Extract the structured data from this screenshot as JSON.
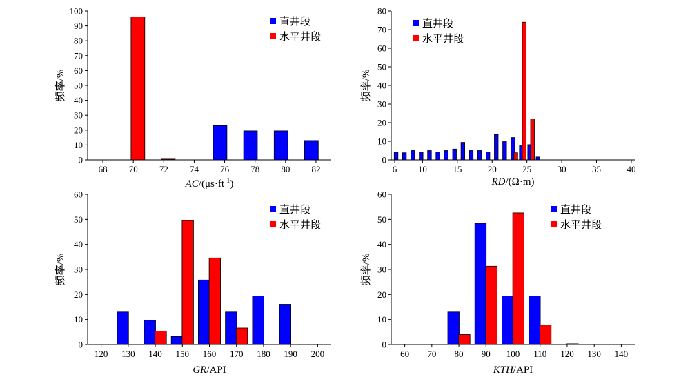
{
  "chart_data": [
    {
      "id": "ac",
      "type": "bar",
      "xlabel_italic": "AC",
      "xlabel_rest": "/(μs·ft",
      "xlabel_sup": "-1",
      "xlabel_close": ")",
      "ylabel": "频率/%",
      "xlim": [
        67,
        83
      ],
      "ylim": [
        0,
        100
      ],
      "xticks": [
        68,
        70,
        72,
        74,
        76,
        78,
        80,
        82
      ],
      "yticks": [
        0,
        10,
        20,
        30,
        40,
        50,
        60,
        70,
        80,
        90,
        100
      ],
      "bar_width": 0.9,
      "legend_position": "top-right",
      "series": [
        {
          "name": "直井段",
          "color": "#0000ff",
          "x": [
            75.7,
            77.7,
            79.7,
            81.7
          ],
          "values": [
            23,
            19.5,
            19.5,
            13
          ]
        },
        {
          "name": "水平井段",
          "color": "#ff0000",
          "x": [
            70.3,
            72.3
          ],
          "values": [
            96,
            0.5
          ]
        }
      ]
    },
    {
      "id": "rd",
      "type": "bar",
      "xlabel_italic": "RD",
      "xlabel_rest": "/(Ω·m)",
      "xlabel_sup": "",
      "xlabel_close": "",
      "ylabel": "频率/%",
      "xlim": [
        5.5,
        40.5
      ],
      "ylim": [
        0,
        80
      ],
      "xticks": [
        6,
        10,
        15,
        20,
        25,
        30,
        35,
        40
      ],
      "yticks": [
        0,
        10,
        20,
        30,
        40,
        50,
        60,
        70,
        80
      ],
      "bar_width": 0.55,
      "legend_position": "top-left",
      "series": [
        {
          "name": "直井段",
          "color": "#0000ff",
          "x": [
            6.2,
            7.4,
            8.6,
            9.8,
            11.0,
            12.2,
            13.4,
            14.6,
            15.8,
            17.0,
            18.2,
            19.4,
            20.6,
            21.8,
            23.0,
            24.2,
            25.4,
            26.6,
            27.8,
            29.0,
            30.2,
            31.4,
            32.6,
            33.8,
            35.0,
            36.2,
            37.4,
            38.6,
            39.8
          ],
          "values": [
            4.2,
            3.8,
            5,
            4.2,
            5,
            4.2,
            5,
            5.8,
            9.4,
            5,
            5,
            4.2,
            13.6,
            9.8,
            12,
            7.6,
            8.2,
            1.5,
            0,
            0,
            0,
            0,
            0,
            0,
            0,
            0,
            0,
            0,
            0
          ]
        },
        {
          "name": "水平井段",
          "color": "#ff0000",
          "x": [
            23.4,
            24.6,
            25.8
          ],
          "values": [
            3.8,
            74,
            22
          ]
        }
      ]
    },
    {
      "id": "gr",
      "type": "bar",
      "xlabel_italic": "GR",
      "xlabel_rest": "/API",
      "xlabel_sup": "",
      "xlabel_close": "",
      "ylabel": "频率/%",
      "xlim": [
        115,
        205
      ],
      "ylim": [
        0,
        60
      ],
      "xticks": [
        120,
        130,
        140,
        150,
        160,
        170,
        180,
        190,
        200
      ],
      "yticks": [
        0,
        10,
        20,
        30,
        40,
        50,
        60
      ],
      "bar_width": 4.2,
      "legend_position": "top-right",
      "series": [
        {
          "name": "直井段",
          "color": "#0000ff",
          "x": [
            128,
            138,
            148,
            158,
            168,
            178,
            188
          ],
          "values": [
            13,
            9.7,
            3.2,
            25.8,
            13,
            19.4,
            16.1
          ]
        },
        {
          "name": "水平井段",
          "color": "#ff0000",
          "x": [
            142,
            152,
            162,
            172
          ],
          "values": [
            5.4,
            49.5,
            34.6,
            6.6
          ]
        }
      ]
    },
    {
      "id": "kth",
      "type": "bar",
      "xlabel_italic": "KTH",
      "xlabel_rest": "/API",
      "xlabel_sup": "",
      "xlabel_close": "",
      "ylabel": "频率/%",
      "xlim": [
        55,
        145
      ],
      "ylim": [
        0,
        60
      ],
      "xticks": [
        60,
        70,
        80,
        90,
        100,
        110,
        120,
        130,
        140
      ],
      "yticks": [
        0,
        10,
        20,
        30,
        40,
        50,
        60
      ],
      "bar_width": 4.2,
      "legend_position": "top-right",
      "series": [
        {
          "name": "直井段",
          "color": "#0000ff",
          "x": [
            78,
            88,
            98,
            108,
            118
          ],
          "values": [
            13,
            48.4,
            19.4,
            19.4,
            0
          ]
        },
        {
          "name": "水平井段",
          "color": "#ff0000",
          "x": [
            82,
            92,
            102,
            112,
            122
          ],
          "values": [
            4,
            31.3,
            52.6,
            7.8,
            0.3
          ]
        }
      ]
    }
  ]
}
